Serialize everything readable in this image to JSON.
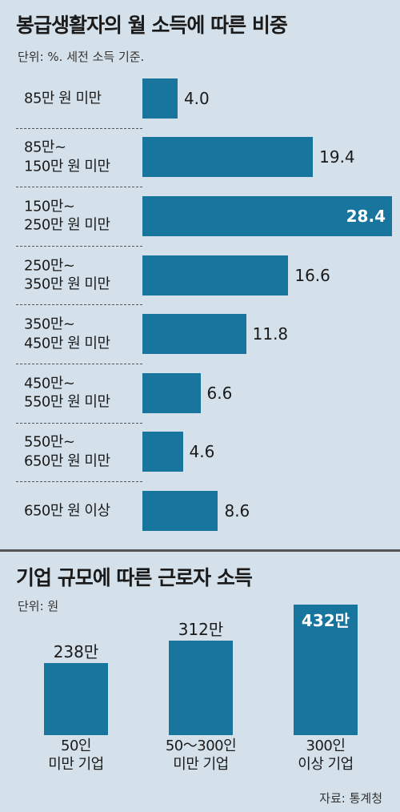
{
  "chart_data": [
    {
      "type": "bar",
      "orientation": "horizontal",
      "title": "봉급생활자의 월 소득에 따른 비중",
      "subtitle": "단위: %. 세전 소득 기준.",
      "categories": [
        "85만 원 미만",
        "85만~\n150만 원 미만",
        "150만~\n250만 원 미만",
        "250만~\n350만 원 미만",
        "350만~\n450만 원 미만",
        "450만~\n550만 원 미만",
        "550만~\n650만 원 미만",
        "650만 원 이상"
      ],
      "values": [
        4.0,
        19.4,
        28.4,
        16.6,
        11.8,
        6.6,
        4.6,
        8.6
      ],
      "value_labels": [
        "4.0",
        "19.4",
        "28.4",
        "16.6",
        "11.8",
        "6.6",
        "4.6",
        "8.6"
      ],
      "color": "#17759e"
    },
    {
      "type": "bar",
      "orientation": "vertical",
      "title": "기업 규모에 따른 근로자 소득",
      "subtitle": "단위: 원",
      "categories": [
        "50인\n미만 기업",
        "50～300인\n미만 기업",
        "300인\n이상 기업"
      ],
      "values": [
        2380000,
        3120000,
        4320000
      ],
      "value_labels": [
        "238만",
        "312만",
        "432만"
      ],
      "color": "#17759e",
      "source": "자료: 통계청"
    }
  ]
}
